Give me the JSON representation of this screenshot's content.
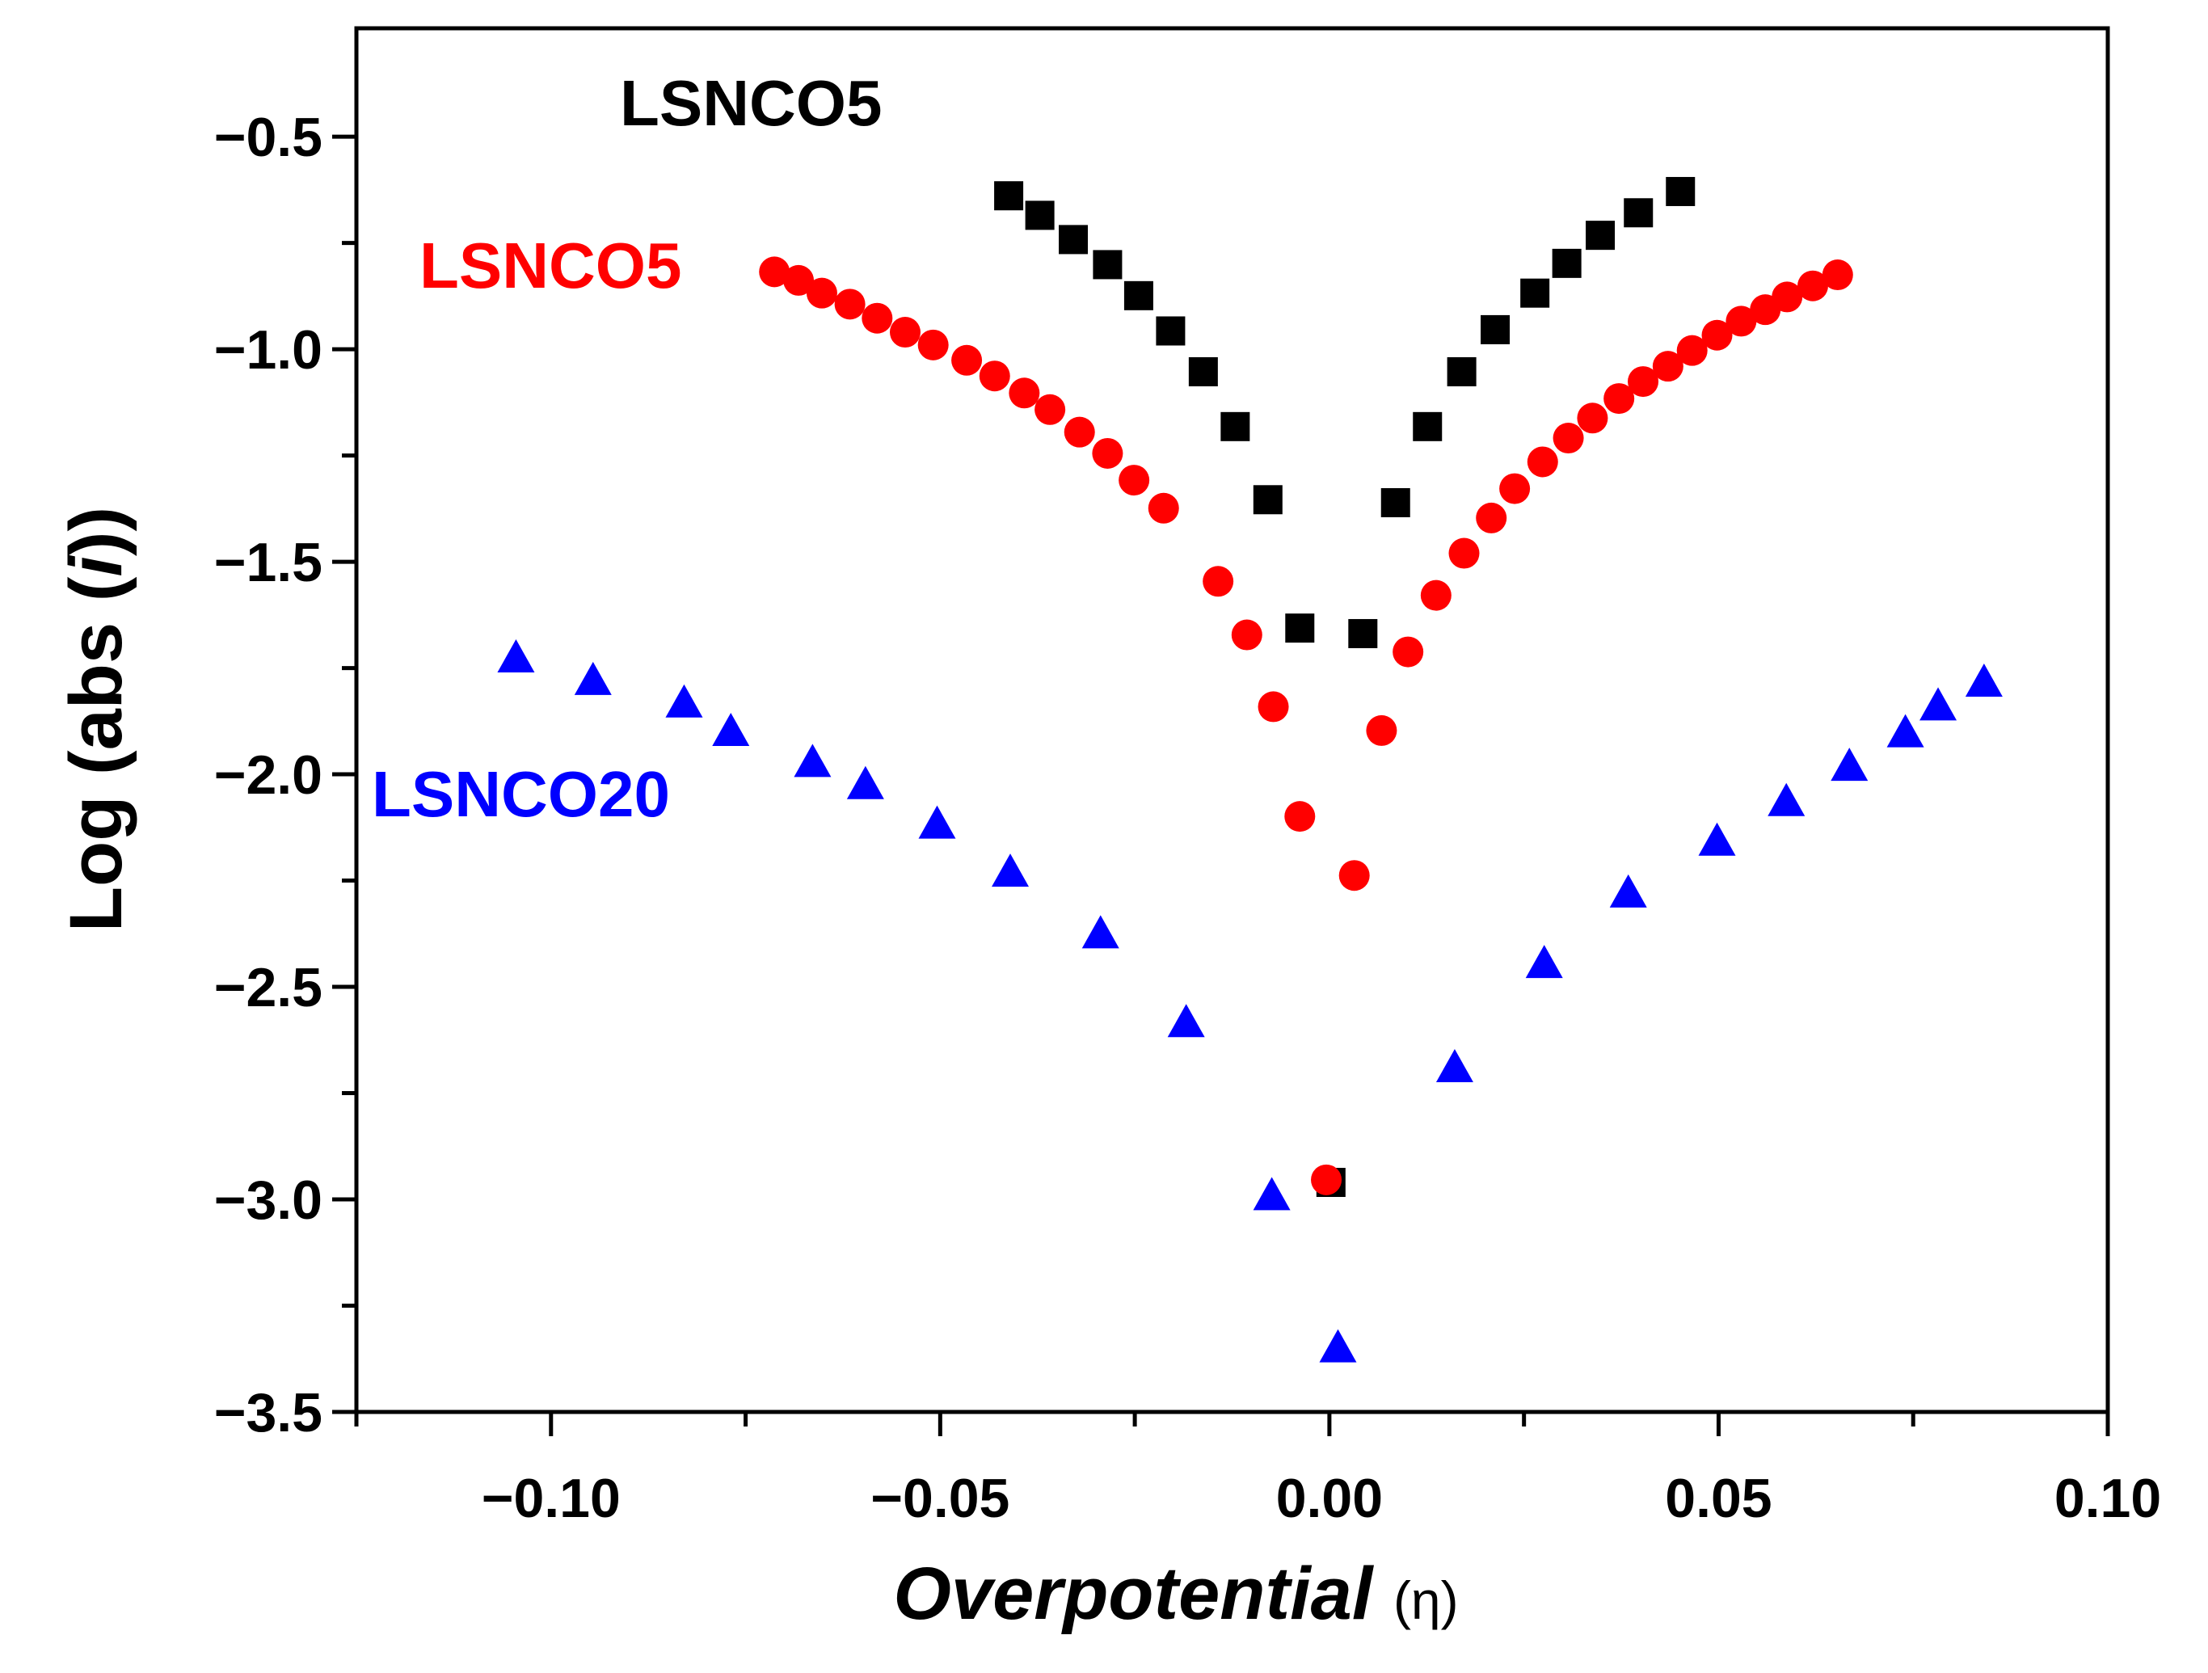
{
  "chart_data": {
    "type": "scatter",
    "title": "",
    "xlabel": "Overpotential",
    "xlabel_unit": "(η)",
    "ylabel_prefix": "Log (abs (",
    "ylabel_var": "i",
    "ylabel_suffix": "))",
    "xlim": [
      -0.125,
      0.1
    ],
    "ylim": [
      -3.5,
      -0.245
    ],
    "x_ticks": [
      -0.1,
      -0.05,
      0.0,
      0.05,
      0.1
    ],
    "x_tick_labels": [
      "−0.10",
      "−0.05",
      "0.00",
      "0.05",
      "0.10"
    ],
    "x_minor_ticks": [
      -0.125,
      -0.075,
      -0.025,
      0.025,
      0.075
    ],
    "y_ticks": [
      -0.5,
      -1.0,
      -1.5,
      -2.0,
      -2.5,
      -3.0,
      -3.5
    ],
    "y_tick_labels": [
      "−0.5",
      "−1.0",
      "−1.5",
      "−2.0",
      "−2.5",
      "−3.0",
      "−3.5"
    ],
    "y_minor_ticks": [
      -0.75,
      -1.25,
      -1.75,
      -2.25,
      -2.75,
      -3.25
    ],
    "grid": false,
    "legend": "none (inline labels)",
    "series": [
      {
        "name": "LSNCO5",
        "label": "LSNCO5",
        "marker": "square",
        "color": "#000000",
        "x": [
          -0.0412,
          -0.0372,
          -0.0329,
          -0.0285,
          -0.0245,
          -0.0204,
          -0.0162,
          -0.0121,
          -0.0079,
          -0.0038,
          0.0002,
          0.0043,
          0.0085,
          0.0126,
          0.017,
          0.0213,
          0.0264,
          0.0305,
          0.0348,
          0.0397,
          0.0451
        ],
        "y": [
          -0.639,
          -0.685,
          -0.742,
          -0.801,
          -0.874,
          -0.957,
          -1.053,
          -1.182,
          -1.354,
          -1.656,
          -2.96,
          -1.669,
          -1.361,
          -1.182,
          -1.053,
          -0.954,
          -0.868,
          -0.798,
          -0.732,
          -0.679,
          -0.629
        ]
      },
      {
        "name": "LSNCO5 (red)",
        "label": "LSNCO5",
        "marker": "circle",
        "color": "#ff0000",
        "x": [
          -0.0713,
          -0.0682,
          -0.0652,
          -0.0616,
          -0.0581,
          -0.0545,
          -0.0509,
          -0.0466,
          -0.043,
          -0.0392,
          -0.0359,
          -0.0321,
          -0.0285,
          -0.0251,
          -0.0213,
          -0.0143,
          -0.0106,
          -0.0072,
          -0.0038,
          -0.0004,
          0.0032,
          0.0067,
          0.0101,
          0.0137,
          0.0173,
          0.0208,
          0.0238,
          0.0274,
          0.0307,
          0.0338,
          0.0372,
          0.0403,
          0.0435,
          0.0466,
          0.0498,
          0.0529,
          0.056,
          0.0588,
          0.0621,
          0.0653
        ],
        "y": [
          -0.818,
          -0.838,
          -0.868,
          -0.894,
          -0.927,
          -0.96,
          -0.99,
          -1.026,
          -1.063,
          -1.103,
          -1.142,
          -1.195,
          -1.245,
          -1.308,
          -1.374,
          -1.546,
          -1.672,
          -1.841,
          -2.099,
          -2.954,
          -2.238,
          -1.897,
          -1.712,
          -1.579,
          -1.48,
          -1.397,
          -1.328,
          -1.265,
          -1.209,
          -1.162,
          -1.116,
          -1.076,
          -1.04,
          -1.003,
          -0.967,
          -0.934,
          -0.907,
          -0.877,
          -0.851,
          -0.825
        ]
      },
      {
        "name": "LSNCO20",
        "label": "LSNCO20",
        "marker": "triangle",
        "color": "#0000ff",
        "x": [
          -0.1045,
          -0.0946,
          -0.0829,
          -0.0769,
          -0.0664,
          -0.0596,
          -0.0504,
          -0.041,
          -0.0294,
          -0.0184,
          -0.0074,
          0.0011,
          0.0161,
          0.0276,
          0.0384,
          0.0498,
          0.0587,
          0.0668,
          0.074,
          0.0782,
          0.0841
        ],
        "y": [
          -1.728,
          -1.781,
          -1.834,
          -1.901,
          -1.974,
          -2.026,
          -2.119,
          -2.232,
          -2.377,
          -2.586,
          -2.993,
          -3.351,
          -2.692,
          -2.447,
          -2.281,
          -2.159,
          -2.066,
          -1.983,
          -1.904,
          -1.841,
          -1.785
        ]
      }
    ]
  }
}
